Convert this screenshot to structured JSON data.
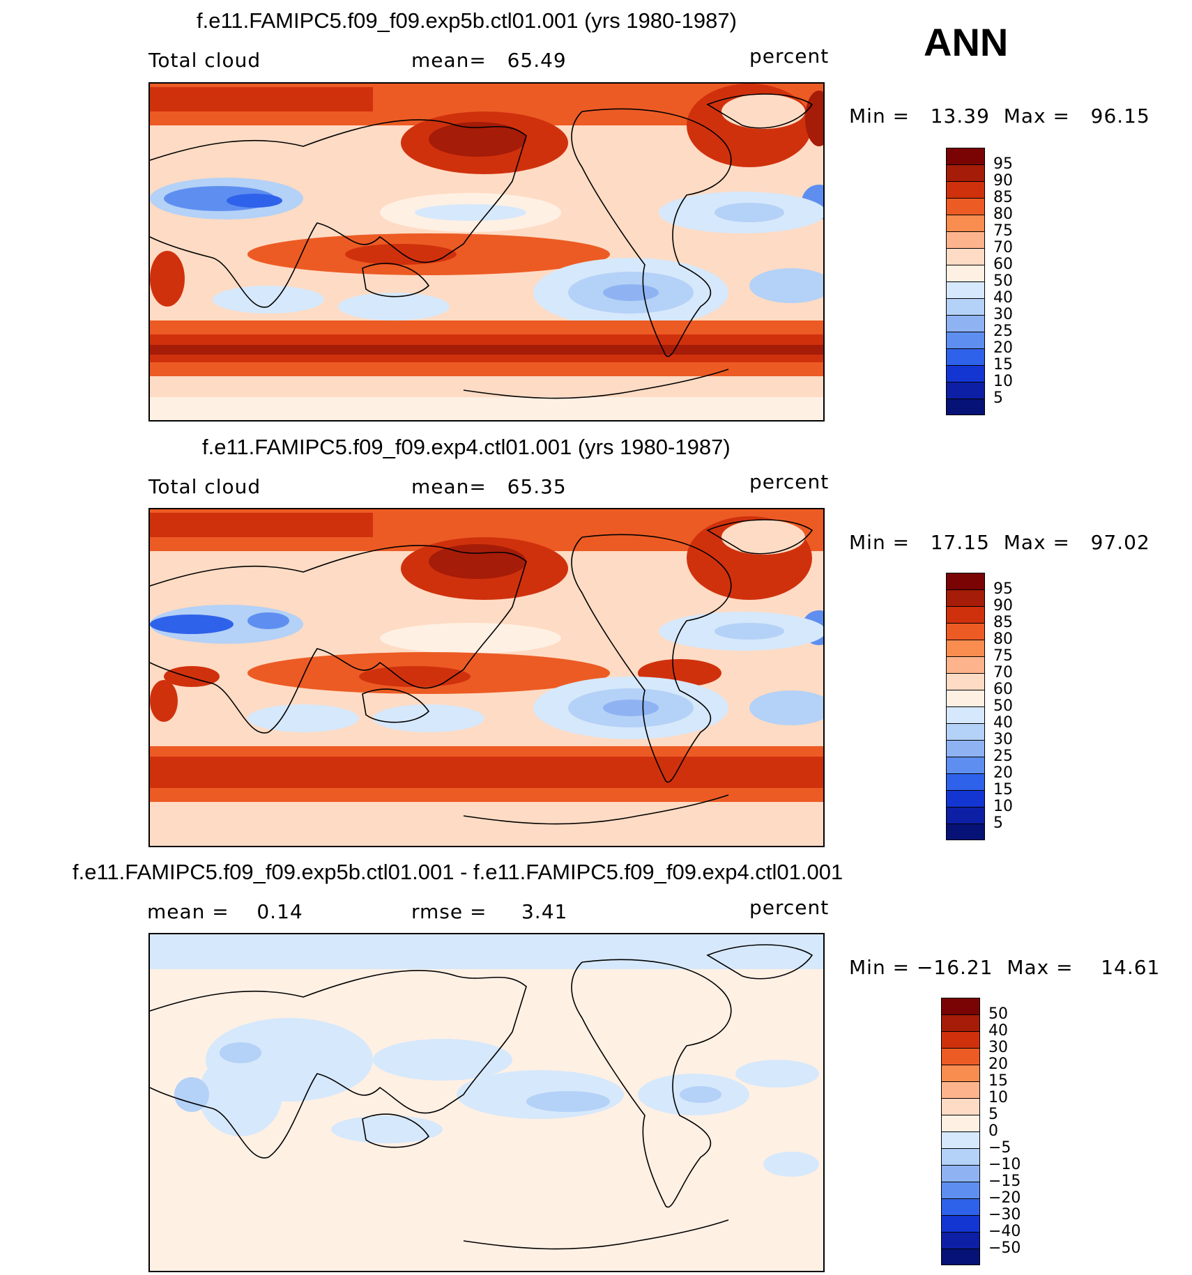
{
  "season": "ANN",
  "panels": [
    {
      "title": "f.e11.FAMIPC5.f09_f09.exp5b.ctl01.001 (yrs 1980-1987)",
      "left_label": "Total cloud",
      "center_label": "mean=   65.49",
      "right_label": "percent",
      "minmax": "Min =   13.39  Max =   96.15",
      "cbar_labels": [
        "95",
        "90",
        "85",
        "80",
        "75",
        "70",
        "60",
        "50",
        "40",
        "30",
        "25",
        "20",
        "15",
        "10",
        "5"
      ],
      "cbar_colors": [
        "#7a0403",
        "#a51c08",
        "#d0310d",
        "#ec5b24",
        "#f98c4f",
        "#fdb48c",
        "#fedbc4",
        "#fff0e4",
        "#d6e8fb",
        "#b4d1f7",
        "#8fb3f2",
        "#5e8ff0",
        "#2f62ea",
        "#1336d3",
        "#0d1fa5",
        "#061275"
      ]
    },
    {
      "title": "f.e11.FAMIPC5.f09_f09.exp4.ctl01.001 (yrs 1980-1987)",
      "left_label": "Total cloud",
      "center_label": "mean=   65.35",
      "right_label": "percent",
      "minmax": "Min =   17.15  Max =   97.02",
      "cbar_labels": [
        "95",
        "90",
        "85",
        "80",
        "75",
        "70",
        "60",
        "50",
        "40",
        "30",
        "25",
        "20",
        "15",
        "10",
        "5"
      ],
      "cbar_colors": [
        "#7a0403",
        "#a51c08",
        "#d0310d",
        "#ec5b24",
        "#f98c4f",
        "#fdb48c",
        "#fedbc4",
        "#fff0e4",
        "#d6e8fb",
        "#b4d1f7",
        "#8fb3f2",
        "#5e8ff0",
        "#2f62ea",
        "#1336d3",
        "#0d1fa5",
        "#061275"
      ]
    },
    {
      "title": "f.e11.FAMIPC5.f09_f09.exp5b.ctl01.001 - f.e11.FAMIPC5.f09_f09.exp4.ctl01.001",
      "left_label": "mean =    0.14",
      "center_label": "rmse =     3.41",
      "right_label": "percent",
      "minmax": "Min = −16.21  Max =    14.61",
      "cbar_labels": [
        "50",
        "40",
        "30",
        "20",
        "15",
        "10",
        "5",
        "0",
        "−5",
        "−10",
        "−15",
        "−20",
        "−30",
        "−40",
        "−50"
      ],
      "cbar_colors": [
        "#7a0403",
        "#a51c08",
        "#d0310d",
        "#ec5b24",
        "#f98c4f",
        "#fdb48c",
        "#fedbc4",
        "#fff0e4",
        "#d6e8fb",
        "#b4d1f7",
        "#8fb3f2",
        "#5e8ff0",
        "#2f62ea",
        "#1336d3",
        "#0d1fa5",
        "#061275"
      ]
    }
  ]
}
